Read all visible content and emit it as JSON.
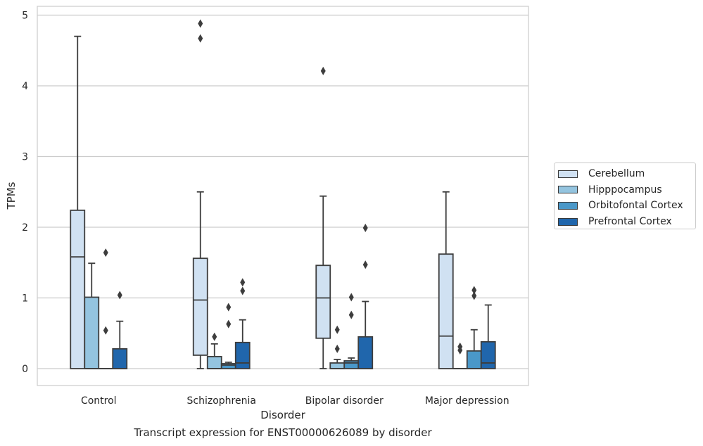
{
  "caption": "Transcript expression for ENST00000626089 by disorder",
  "chart_data": {
    "type": "boxplot",
    "xlabel": "Disorder",
    "ylabel": "TPMs",
    "ylim": [
      -0.23,
      5.13
    ],
    "yticks": [
      0,
      1,
      2,
      3,
      4,
      5
    ],
    "grid": "horizontal",
    "legend_position": "right",
    "categories": [
      "Control",
      "Schizophrenia",
      "Bipolar disorder",
      "Major depression"
    ],
    "series": [
      {
        "name": "Cerebellum",
        "color": "#d0e1f2",
        "boxes": [
          {
            "whisker_low": 0,
            "q1": 0,
            "median": 1.58,
            "q3": 2.24,
            "whisker_high": 4.7,
            "outliers": []
          },
          {
            "whisker_low": 0,
            "q1": 0.19,
            "median": 0.97,
            "q3": 1.56,
            "whisker_high": 2.5,
            "outliers": [
              4.67,
              4.88
            ]
          },
          {
            "whisker_low": 0,
            "q1": 0.43,
            "median": 1.0,
            "q3": 1.46,
            "whisker_high": 2.44,
            "outliers": [
              4.21
            ]
          },
          {
            "whisker_low": 0,
            "q1": 0,
            "median": 0.46,
            "q3": 1.62,
            "whisker_high": 2.5,
            "outliers": []
          }
        ]
      },
      {
        "name": "Hipppocampus",
        "color": "#94c4df",
        "boxes": [
          {
            "whisker_low": 0,
            "q1": 0,
            "median": 0,
            "q3": 1.01,
            "whisker_high": 1.49,
            "outliers": []
          },
          {
            "whisker_low": 0,
            "q1": 0,
            "median": 0,
            "q3": 0.17,
            "whisker_high": 0.35,
            "outliers": [
              0.45
            ]
          },
          {
            "whisker_low": 0,
            "q1": 0,
            "median": 0,
            "q3": 0.08,
            "whisker_high": 0.13,
            "outliers": [
              0.28,
              0.55
            ]
          },
          {
            "whisker_low": 0,
            "q1": 0,
            "median": 0,
            "q3": 0,
            "whisker_high": 0,
            "outliers": [
              0.26,
              0.31
            ]
          }
        ]
      },
      {
        "name": "Orbitofontal Cortex",
        "color": "#4a98c9",
        "boxes": [
          {
            "whisker_low": 0,
            "q1": 0,
            "median": 0,
            "q3": 0,
            "whisker_high": 0,
            "outliers": [
              0.54,
              1.64
            ]
          },
          {
            "whisker_low": 0,
            "q1": 0,
            "median": 0.05,
            "q3": 0.07,
            "whisker_high": 0.09,
            "outliers": [
              0.63,
              0.87
            ]
          },
          {
            "whisker_low": 0,
            "q1": 0,
            "median": 0.08,
            "q3": 0.11,
            "whisker_high": 0.15,
            "outliers": [
              0.76,
              1.01
            ]
          },
          {
            "whisker_low": 0,
            "q1": 0,
            "median": 0,
            "q3": 0.25,
            "whisker_high": 0.55,
            "outliers": [
              1.03,
              1.11
            ]
          }
        ]
      },
      {
        "name": "Prefrontal Cortex",
        "color": "#2066ac",
        "boxes": [
          {
            "whisker_low": 0,
            "q1": 0,
            "median": 0,
            "q3": 0.28,
            "whisker_high": 0.67,
            "outliers": [
              1.04
            ]
          },
          {
            "whisker_low": 0,
            "q1": 0,
            "median": 0.08,
            "q3": 0.37,
            "whisker_high": 0.69,
            "outliers": [
              1.1,
              1.22
            ]
          },
          {
            "whisker_low": 0,
            "q1": 0,
            "median": 0,
            "q3": 0.45,
            "whisker_high": 0.95,
            "outliers": [
              1.47,
              1.99
            ]
          },
          {
            "whisker_low": 0,
            "q1": 0,
            "median": 0.08,
            "q3": 0.38,
            "whisker_high": 0.9,
            "outliers": []
          }
        ]
      }
    ]
  }
}
